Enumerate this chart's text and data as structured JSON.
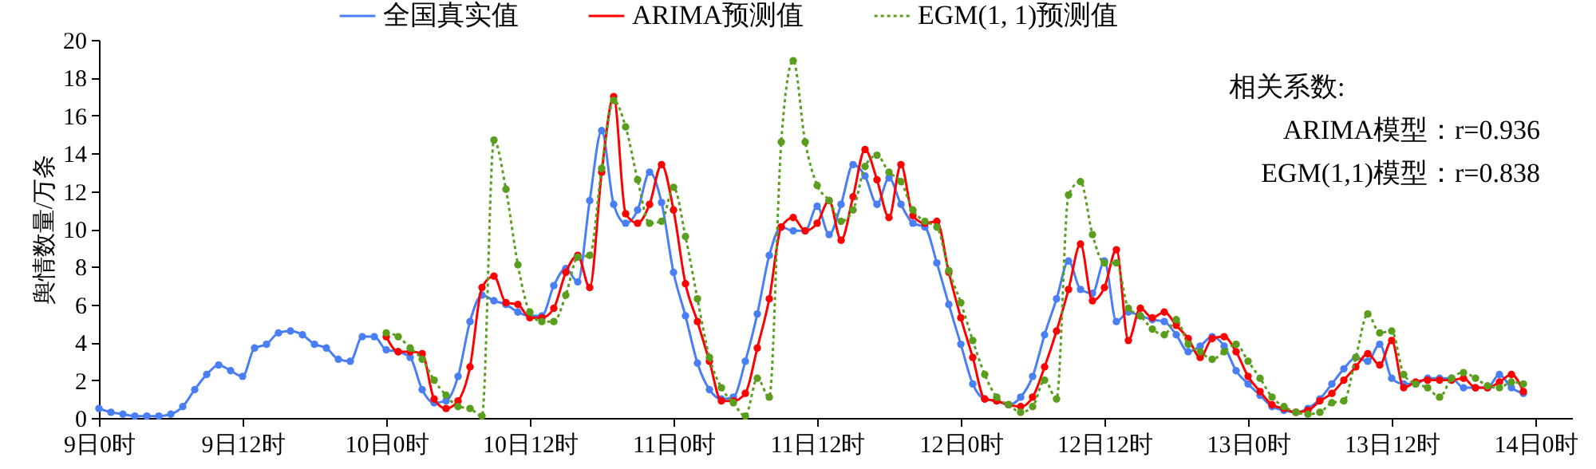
{
  "chart_data": {
    "type": "line",
    "ylabel": "舆情数量/万条",
    "categories": [
      "9日0时",
      null,
      null,
      null,
      null,
      null,
      null,
      null,
      null,
      null,
      null,
      null,
      "9日12时",
      null,
      null,
      null,
      null,
      null,
      null,
      null,
      null,
      null,
      null,
      null,
      "10日0时",
      null,
      null,
      null,
      null,
      null,
      null,
      null,
      null,
      null,
      null,
      null,
      "10日12时",
      null,
      null,
      null,
      null,
      null,
      null,
      null,
      null,
      null,
      null,
      null,
      "11日0时",
      null,
      null,
      null,
      null,
      null,
      null,
      null,
      null,
      null,
      null,
      null,
      "11日12时",
      null,
      null,
      null,
      null,
      null,
      null,
      null,
      null,
      null,
      null,
      null,
      "12日0时",
      null,
      null,
      null,
      null,
      null,
      null,
      null,
      null,
      null,
      null,
      null,
      "12日12时",
      null,
      null,
      null,
      null,
      null,
      null,
      null,
      null,
      null,
      null,
      null,
      "13日0时",
      null,
      null,
      null,
      null,
      null,
      null,
      null,
      null,
      null,
      null,
      null,
      "13日12时",
      null,
      null,
      null,
      null,
      null,
      null,
      null,
      null,
      null,
      null,
      null,
      "14日0时"
    ],
    "ylim": [
      0,
      20
    ],
    "yticks": [
      0,
      2,
      4,
      6,
      8,
      10,
      12,
      14,
      16,
      18,
      20
    ],
    "grid": false,
    "legend": "top",
    "marker": "circle",
    "annotations": [
      "相关系数:",
      "ARIMA模型：r=0.936",
      "EGM(1,1)模型：r=0.838"
    ],
    "series": [
      {
        "name": "全国真实值",
        "color": "#4a7ef5",
        "line_style": "solid",
        "values": [
          0.5,
          0.3,
          0.2,
          0.1,
          0.1,
          0.1,
          0.2,
          0.6,
          1.5,
          2.3,
          2.8,
          2.5,
          2.2,
          3.7,
          3.9,
          4.5,
          4.6,
          4.4,
          3.9,
          3.7,
          3.1,
          3.0,
          4.3,
          4.3,
          3.6,
          3.5,
          3.2,
          1.5,
          0.8,
          0.9,
          2.2,
          5.1,
          6.5,
          6.2,
          6.0,
          5.6,
          5.4,
          5.4,
          7.0,
          7.9,
          7.2,
          11.5,
          15.2,
          11.3,
          10.3,
          11.0,
          13.0,
          11.4,
          7.7,
          5.4,
          2.9,
          1.5,
          1.0,
          1.1,
          3.0,
          5.5,
          8.6,
          10.1,
          9.9,
          9.9,
          11.2,
          9.7,
          11.3,
          13.4,
          12.8,
          11.3,
          12.7,
          11.3,
          10.3,
          10.1,
          8.2,
          6.0,
          3.9,
          1.8,
          1.0,
          0.9,
          0.7,
          1.1,
          2.2,
          4.4,
          6.3,
          8.3,
          6.8,
          6.6,
          8.3,
          5.1,
          5.6,
          5.4,
          5.2,
          5.1,
          4.4,
          3.5,
          3.8,
          4.3,
          3.8,
          2.5,
          1.8,
          1.2,
          0.6,
          0.4,
          0.3,
          0.5,
          1.0,
          1.8,
          2.6,
          3.2,
          3.0,
          3.9,
          2.1,
          1.8,
          1.8,
          2.1,
          2.1,
          2.1,
          1.6,
          1.6,
          1.6,
          2.3,
          1.6,
          1.3,
          null
        ]
      },
      {
        "name": "ARIMA预测值",
        "color": "#ff0000",
        "line_style": "solid",
        "values": [
          null,
          null,
          null,
          null,
          null,
          null,
          null,
          null,
          null,
          null,
          null,
          null,
          null,
          null,
          null,
          null,
          null,
          null,
          null,
          null,
          null,
          null,
          null,
          null,
          4.3,
          3.5,
          3.5,
          3.4,
          1.0,
          0.5,
          0.9,
          2.7,
          6.9,
          7.5,
          6.1,
          6.0,
          5.3,
          5.3,
          5.8,
          7.7,
          8.6,
          6.9,
          13.0,
          17.0,
          10.8,
          10.3,
          11.3,
          13.4,
          11.0,
          7.1,
          5.1,
          3.0,
          0.9,
          0.9,
          1.3,
          3.7,
          6.3,
          10.1,
          10.6,
          9.9,
          10.3,
          11.5,
          9.4,
          11.7,
          14.2,
          12.6,
          10.6,
          13.4,
          10.7,
          10.3,
          10.4,
          7.7,
          5.3,
          3.2,
          1.0,
          0.9,
          0.7,
          0.6,
          1.1,
          2.7,
          4.6,
          6.8,
          9.2,
          6.2,
          6.9,
          8.9,
          4.1,
          5.8,
          5.3,
          5.6,
          4.9,
          4.2,
          3.2,
          4.2,
          4.3,
          3.5,
          2.2,
          1.4,
          0.7,
          0.5,
          0.3,
          0.4,
          0.9,
          1.3,
          2.0,
          2.7,
          3.4,
          2.8,
          4.1,
          1.6,
          1.9,
          2.0,
          2.0,
          2.0,
          2.1,
          1.6,
          1.6,
          1.9,
          2.3,
          1.4,
          null
        ]
      },
      {
        "name": "EGM(1, 1)预测值",
        "color": "#5a9e1e",
        "line_style": "dotted",
        "values": [
          null,
          null,
          null,
          null,
          null,
          null,
          null,
          null,
          null,
          null,
          null,
          null,
          null,
          null,
          null,
          null,
          null,
          null,
          null,
          null,
          null,
          null,
          null,
          null,
          4.5,
          4.3,
          3.7,
          3.1,
          2.0,
          1.2,
          0.6,
          0.5,
          0.1,
          14.7,
          12.1,
          8.1,
          5.6,
          5.1,
          5.1,
          6.5,
          8.5,
          8.6,
          13.2,
          16.8,
          15.4,
          12.6,
          10.3,
          10.4,
          12.2,
          9.6,
          6.3,
          3.2,
          1.6,
          0.8,
          0.1,
          2.1,
          1.1,
          14.6,
          18.9,
          14.6,
          12.3,
          11.5,
          10.4,
          11.0,
          13.3,
          13.9,
          13.0,
          12.5,
          11.0,
          10.4,
          10.1,
          7.8,
          6.1,
          4.1,
          2.3,
          1.1,
          0.7,
          0.3,
          0.6,
          2.0,
          1.0,
          11.8,
          12.5,
          9.7,
          8.2,
          8.2,
          5.8,
          5.4,
          4.7,
          4.4,
          5.2,
          3.9,
          3.5,
          3.1,
          3.5,
          3.9,
          3.0,
          2.1,
          1.1,
          0.6,
          0.3,
          0.2,
          0.3,
          0.8,
          0.9,
          3.2,
          5.5,
          4.5,
          4.6,
          2.3,
          1.8,
          1.6,
          1.1,
          2.1,
          2.4,
          2.1,
          1.7,
          1.6,
          1.9,
          1.8,
          null
        ]
      }
    ]
  }
}
